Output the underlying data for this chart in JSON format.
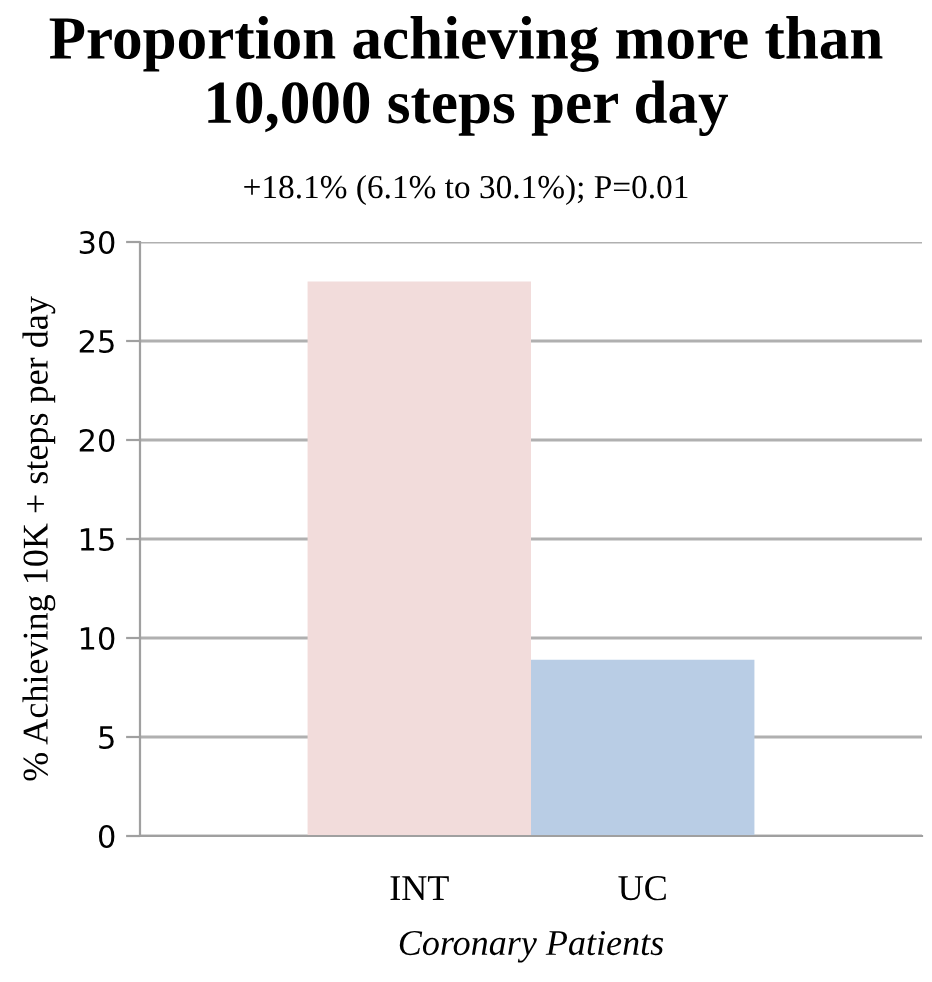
{
  "chart_data": {
    "type": "bar",
    "title": "Proportion achieving more than 10,000 steps per day",
    "subtitle": "+18.1% (6.1% to 30.1%); P=0.01",
    "categories": [
      "INT",
      "UC"
    ],
    "values": [
      28,
      8.9
    ],
    "colors": [
      "#f2dcdb",
      "#b9cde5"
    ],
    "xlabel": "Coronary Patients",
    "ylabel": "% Achieving 10K + steps per day",
    "ylim": [
      0,
      30
    ],
    "yticks": [
      0,
      5,
      10,
      15,
      20,
      25,
      30
    ],
    "grid": "y"
  }
}
